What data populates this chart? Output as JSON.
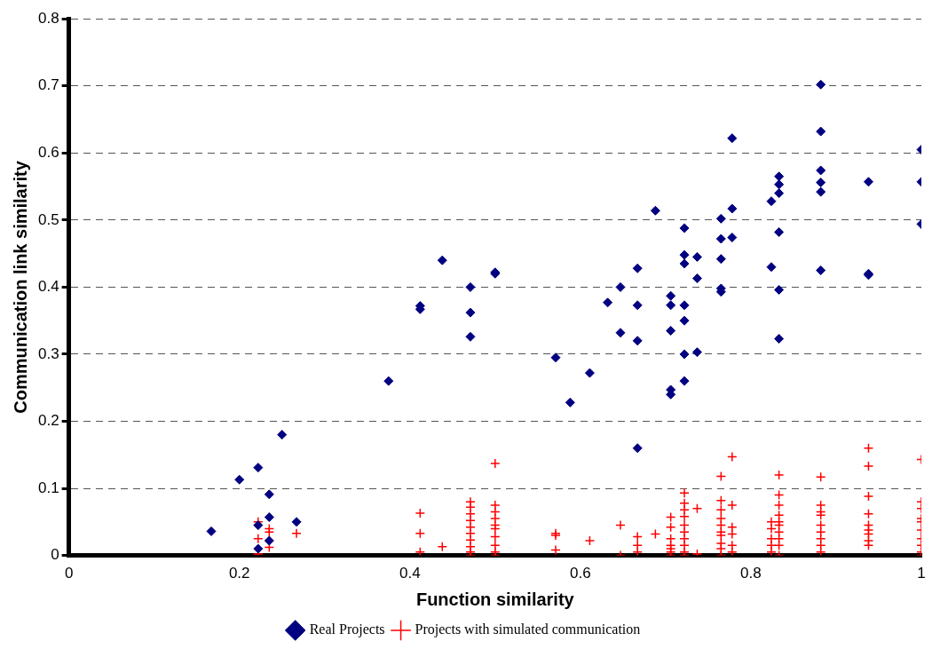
{
  "chart_data": {
    "type": "scatter",
    "xlabel": "Function similarity",
    "ylabel": "Communication link similarity",
    "xlim": [
      0,
      1
    ],
    "ylim": [
      0,
      0.8
    ],
    "xticks": [
      0,
      0.2,
      0.4,
      0.6,
      0.8,
      1
    ],
    "yticks": [
      0,
      0.1,
      0.2,
      0.3,
      0.4,
      0.5,
      0.6,
      0.7,
      0.8
    ],
    "grid": "y",
    "legend": "bottom",
    "series": [
      {
        "name": "Real Projects",
        "color": "#000080",
        "marker": "diamond",
        "x": [
          0.167,
          0.2,
          0.222,
          0.222,
          0.222,
          0.235,
          0.235,
          0.235,
          0.25,
          0.267,
          0.375,
          0.412,
          0.412,
          0.438,
          0.471,
          0.471,
          0.471,
          0.5,
          0.5,
          0.571,
          0.588,
          0.611,
          0.632,
          0.647,
          0.647,
          0.667,
          0.667,
          0.667,
          0.667,
          0.688,
          0.706,
          0.706,
          0.706,
          0.706,
          0.706,
          0.722,
          0.722,
          0.722,
          0.722,
          0.722,
          0.722,
          0.722,
          0.737,
          0.737,
          0.737,
          0.765,
          0.765,
          0.765,
          0.765,
          0.765,
          0.778,
          0.778,
          0.778,
          0.824,
          0.824,
          0.833,
          0.833,
          0.833,
          0.833,
          0.833,
          0.833,
          0.882,
          0.882,
          0.882,
          0.882,
          0.882,
          0.882,
          0.938,
          0.938,
          0.938,
          1,
          1,
          1
        ],
        "values": [
          0.036,
          0.113,
          0.131,
          0.045,
          0.01,
          0.091,
          0.057,
          0.022,
          0.18,
          0.05,
          0.26,
          0.372,
          0.367,
          0.44,
          0.4,
          0.362,
          0.326,
          0.42,
          0.422,
          0.295,
          0.228,
          0.272,
          0.377,
          0.4,
          0.332,
          0.428,
          0.373,
          0.32,
          0.16,
          0.514,
          0.387,
          0.373,
          0.335,
          0.247,
          0.24,
          0.488,
          0.448,
          0.435,
          0.373,
          0.35,
          0.3,
          0.26,
          0.445,
          0.413,
          0.303,
          0.502,
          0.472,
          0.442,
          0.398,
          0.393,
          0.622,
          0.517,
          0.474,
          0.528,
          0.43,
          0.565,
          0.553,
          0.54,
          0.482,
          0.396,
          0.323,
          0.702,
          0.632,
          0.574,
          0.556,
          0.542,
          0.425,
          0.557,
          0.42,
          0.418,
          0.605,
          0.557,
          0.494
        ]
      },
      {
        "name": "Projects with simulated communication",
        "color": "#ff0000",
        "marker": "cross",
        "x": [
          0.222,
          0.222,
          0.222,
          0.235,
          0.235,
          0.235,
          0.267,
          0.412,
          0.412,
          0.412,
          0.438,
          0.471,
          0.471,
          0.471,
          0.471,
          0.471,
          0.471,
          0.471,
          0.471,
          0.471,
          0.471,
          0.5,
          0.5,
          0.5,
          0.5,
          0.5,
          0.5,
          0.5,
          0.5,
          0.5,
          0.5,
          0.571,
          0.571,
          0.571,
          0.611,
          0.647,
          0.647,
          0.667,
          0.667,
          0.667,
          0.688,
          0.706,
          0.706,
          0.706,
          0.706,
          0.706,
          0.706,
          0.706,
          0.722,
          0.722,
          0.722,
          0.722,
          0.722,
          0.722,
          0.722,
          0.722,
          0.722,
          0.722,
          0.737,
          0.737,
          0.765,
          0.765,
          0.765,
          0.765,
          0.765,
          0.765,
          0.765,
          0.765,
          0.765,
          0.765,
          0.778,
          0.778,
          0.778,
          0.778,
          0.778,
          0.778,
          0.824,
          0.824,
          0.824,
          0.824,
          0.824,
          0.833,
          0.833,
          0.833,
          0.833,
          0.833,
          0.833,
          0.833,
          0.833,
          0.833,
          0.833,
          0.882,
          0.882,
          0.882,
          0.882,
          0.882,
          0.882,
          0.882,
          0.882,
          0.882,
          0.938,
          0.938,
          0.938,
          0.938,
          0.938,
          0.938,
          0.938,
          0.938,
          0.938,
          1,
          1,
          1,
          1,
          1,
          1,
          1,
          1,
          1,
          1
        ],
        "values": [
          0.05,
          0.025,
          0.002,
          0.035,
          0.012,
          0.04,
          0.033,
          0.063,
          0.033,
          0.005,
          0.013,
          0.08,
          0.072,
          0.062,
          0.052,
          0.042,
          0.033,
          0.023,
          0.013,
          0.005,
          0,
          0.137,
          0.075,
          0.065,
          0.055,
          0.045,
          0.04,
          0.028,
          0.015,
          0.005,
          0,
          0.033,
          0.03,
          0.008,
          0.022,
          0.045,
          0,
          0.028,
          0.015,
          0.005,
          0.032,
          0.057,
          0.042,
          0.025,
          0.015,
          0.01,
          0.005,
          0,
          0.093,
          0.078,
          0.068,
          0.058,
          0.045,
          0.035,
          0.025,
          0.015,
          0.005,
          0,
          0.07,
          0.002,
          0.118,
          0.082,
          0.068,
          0.055,
          0.045,
          0.035,
          0.03,
          0.018,
          0.01,
          0,
          0.147,
          0.075,
          0.042,
          0.032,
          0.015,
          0.005,
          0.05,
          0.04,
          0.025,
          0.015,
          0.005,
          0.12,
          0.09,
          0.075,
          0.06,
          0.05,
          0.045,
          0.035,
          0.025,
          0.015,
          0,
          0.117,
          0.075,
          0.065,
          0.06,
          0.045,
          0.035,
          0.025,
          0.015,
          0.005,
          0.16,
          0.133,
          0.088,
          0.062,
          0.045,
          0.038,
          0.032,
          0.022,
          0.015,
          0.143,
          0.08,
          0.07,
          0.055,
          0.05,
          0.038,
          0.025,
          0.015,
          0.005,
          0
        ]
      }
    ]
  }
}
